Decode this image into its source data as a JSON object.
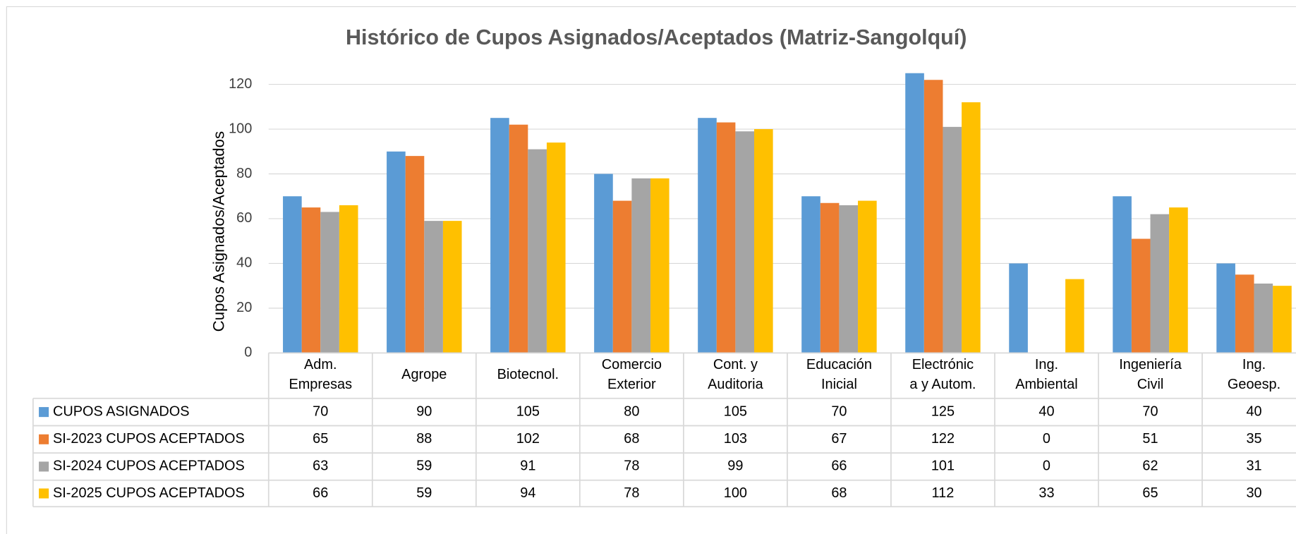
{
  "chart_data": {
    "type": "bar",
    "title": "Histórico de Cupos Asignados/Aceptados (Matriz-Sangolquí)",
    "y_label": "Cupos Asignados/Aceptados",
    "categories": [
      "Adm.\nEmpresas",
      "Agrope",
      "Biotecnol.",
      "Comercio\nExterior",
      "Cont. y\nAuditoria",
      "Educación\nInicial",
      "Electrónic\na y Autom.",
      "Ing.\nAmbiental",
      "Ingeniería\nCivil",
      "Ing.\nGeoesp."
    ],
    "series": [
      {
        "name": "CUPOS ASIGNADOS",
        "color": "#5b9bd5",
        "values": [
          70,
          90,
          105,
          80,
          105,
          70,
          125,
          40,
          70,
          40
        ]
      },
      {
        "name": "SI-2023 CUPOS ACEPTADOS",
        "color": "#ed7d31",
        "values": [
          65,
          88,
          102,
          68,
          103,
          67,
          122,
          0,
          51,
          35
        ]
      },
      {
        "name": "SI-2024 CUPOS ACEPTADOS",
        "color": "#a5a5a5",
        "values": [
          63,
          59,
          91,
          78,
          99,
          66,
          101,
          0,
          62,
          31
        ]
      },
      {
        "name": "SI-2025 CUPOS ACEPTADOS",
        "color": "#ffc000",
        "values": [
          66,
          59,
          94,
          78,
          100,
          68,
          112,
          33,
          65,
          30
        ]
      }
    ],
    "ylim": [
      0,
      120
    ],
    "yticks": [
      0,
      20,
      40,
      60,
      80,
      100,
      120
    ],
    "grid": true,
    "data_table": true
  }
}
